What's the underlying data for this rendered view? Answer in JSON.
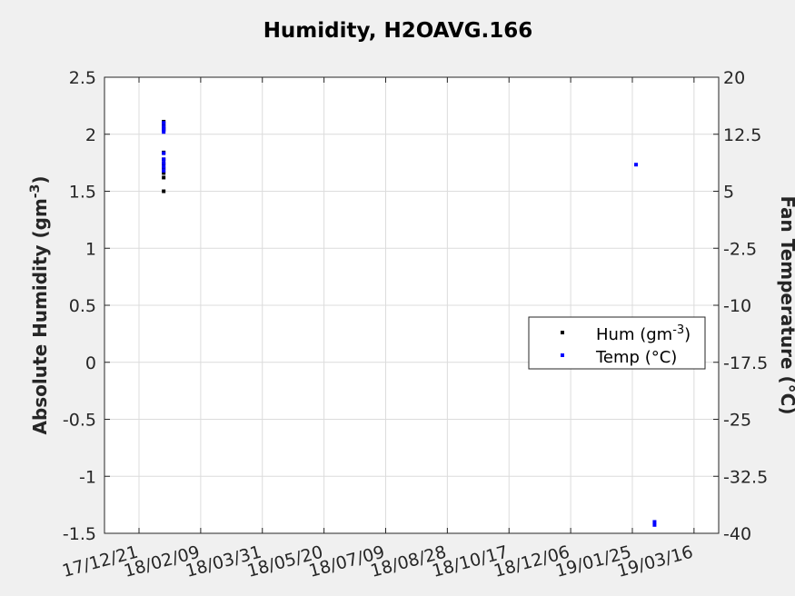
{
  "chart_data": {
    "type": "scatter",
    "title": "Humidity, H2OAVG.166",
    "xlabel": "",
    "ylabel_left_main": "Absolute Humidity (gm",
    "ylabel_left_sup": "-3",
    "ylabel_left_end": ")",
    "ylabel_right": "Fan Temperature (°C)",
    "x_tick_labels": [
      "17/12/21",
      "18/02/09",
      "18/03/31",
      "18/05/20",
      "18/07/09",
      "18/08/28",
      "18/10/17",
      "18/12/06",
      "19/01/25",
      "19/03/16"
    ],
    "x_range_days": [
      -28,
      470
    ],
    "y_left": {
      "range": [
        -1.5,
        2.5
      ],
      "ticks": [
        "-1.5",
        "-1",
        "-0.5",
        "0",
        "0.5",
        "1",
        "1.5",
        "2",
        "2.5"
      ]
    },
    "y_right": {
      "range": [
        -40,
        20
      ],
      "ticks": [
        "-40",
        "-32.5",
        "-25",
        "-17.5",
        "-10",
        "-2.5",
        "5",
        "12.5",
        "20"
      ]
    },
    "grid": true,
    "legend": {
      "placement": "right",
      "entries": [
        {
          "label_main": "Hum (gm",
          "label_sup": "-3",
          "label_end": ")",
          "color": "#000000"
        },
        {
          "label_main": "Temp (°C)",
          "label_sup": "",
          "label_end": "",
          "color": "#0000ff"
        }
      ]
    },
    "series": [
      {
        "name": "Hum (gm-3)",
        "axis": "left",
        "color": "#000000",
        "points": [
          {
            "x": 20,
            "y": 2.11
          },
          {
            "x": 20,
            "y": 2.09
          },
          {
            "x": 20,
            "y": 2.07
          },
          {
            "x": 20,
            "y": 2.05
          },
          {
            "x": 20,
            "y": 2.04
          },
          {
            "x": 20,
            "y": 1.84
          },
          {
            "x": 20,
            "y": 1.78
          },
          {
            "x": 20,
            "y": 1.74
          },
          {
            "x": 20,
            "y": 1.7
          },
          {
            "x": 20,
            "y": 1.66
          },
          {
            "x": 20,
            "y": 1.62
          },
          {
            "x": 20,
            "y": 1.5
          }
        ]
      },
      {
        "name": "Temp (°C)",
        "axis": "right",
        "color": "#0000ff",
        "points": [
          {
            "x": 20,
            "y": 14.0
          },
          {
            "x": 20,
            "y": 13.5
          },
          {
            "x": 20,
            "y": 13.1
          },
          {
            "x": 20,
            "y": 12.8
          },
          {
            "x": 20,
            "y": 10.0
          },
          {
            "x": 20,
            "y": 9.2
          },
          {
            "x": 20,
            "y": 8.7
          },
          {
            "x": 20,
            "y": 8.2
          },
          {
            "x": 20,
            "y": 7.7
          },
          {
            "x": 403,
            "y": 8.5
          },
          {
            "x": 418,
            "y": -38.5
          },
          {
            "x": 418,
            "y": -38.9
          }
        ]
      }
    ]
  }
}
